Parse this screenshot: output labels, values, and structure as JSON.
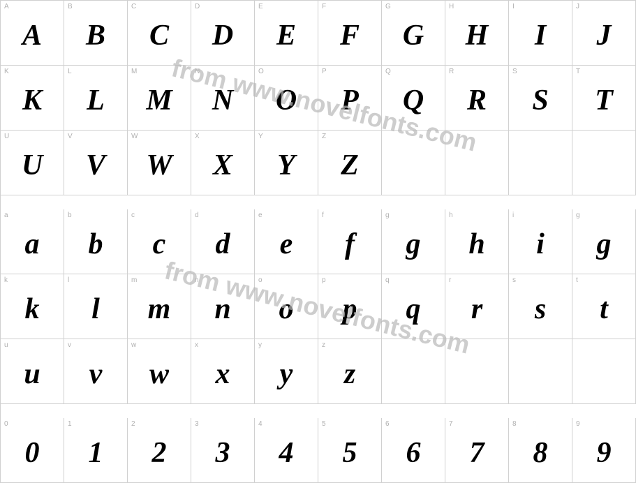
{
  "watermark_text": "from www.novelfonts.com",
  "watermark_color": "#b8b8b8",
  "grid_border_color": "#d0d0d0",
  "label_color": "#b0b0b0",
  "glyph_color": "#000000",
  "background_color": "#ffffff",
  "label_fontsize": 10,
  "glyph_fontsize": 42,
  "watermark_fontsize": 36,
  "rows": [
    {
      "labels": [
        "A",
        "B",
        "C",
        "D",
        "E",
        "F",
        "G",
        "H",
        "I",
        "J"
      ],
      "glyphs": [
        "A",
        "B",
        "C",
        "D",
        "E",
        "F",
        "G",
        "H",
        "I",
        "J"
      ]
    },
    {
      "labels": [
        "K",
        "L",
        "M",
        "N",
        "O",
        "P",
        "Q",
        "R",
        "S",
        "T"
      ],
      "glyphs": [
        "K",
        "L",
        "M",
        "N",
        "O",
        "P",
        "Q",
        "R",
        "S",
        "T"
      ]
    },
    {
      "labels": [
        "U",
        "V",
        "W",
        "X",
        "Y",
        "Z",
        "",
        "",
        "",
        ""
      ],
      "glyphs": [
        "U",
        "V",
        "W",
        "X",
        "Y",
        "Z",
        "",
        "",
        "",
        ""
      ]
    },
    {
      "labels": [
        "a",
        "b",
        "c",
        "d",
        "e",
        "f",
        "g",
        "h",
        "i",
        "g"
      ],
      "glyphs": [
        "a",
        "b",
        "c",
        "d",
        "e",
        "f",
        "g",
        "h",
        "i",
        "g"
      ]
    },
    {
      "labels": [
        "k",
        "l",
        "m",
        "n",
        "o",
        "p",
        "q",
        "r",
        "s",
        "t"
      ],
      "glyphs": [
        "k",
        "l",
        "m",
        "n",
        "o",
        "p",
        "q",
        "r",
        "s",
        "t"
      ]
    },
    {
      "labels": [
        "u",
        "v",
        "w",
        "x",
        "y",
        "z",
        "",
        "",
        "",
        ""
      ],
      "glyphs": [
        "u",
        "v",
        "w",
        "x",
        "y",
        "z",
        "",
        "",
        "",
        ""
      ]
    },
    {
      "labels": [
        "0",
        "1",
        "2",
        "3",
        "4",
        "5",
        "6",
        "7",
        "8",
        "9"
      ],
      "glyphs": [
        "0",
        "1",
        "2",
        "3",
        "4",
        "5",
        "6",
        "7",
        "8",
        "9"
      ]
    }
  ],
  "spacers_after_row": [
    2,
    5
  ]
}
